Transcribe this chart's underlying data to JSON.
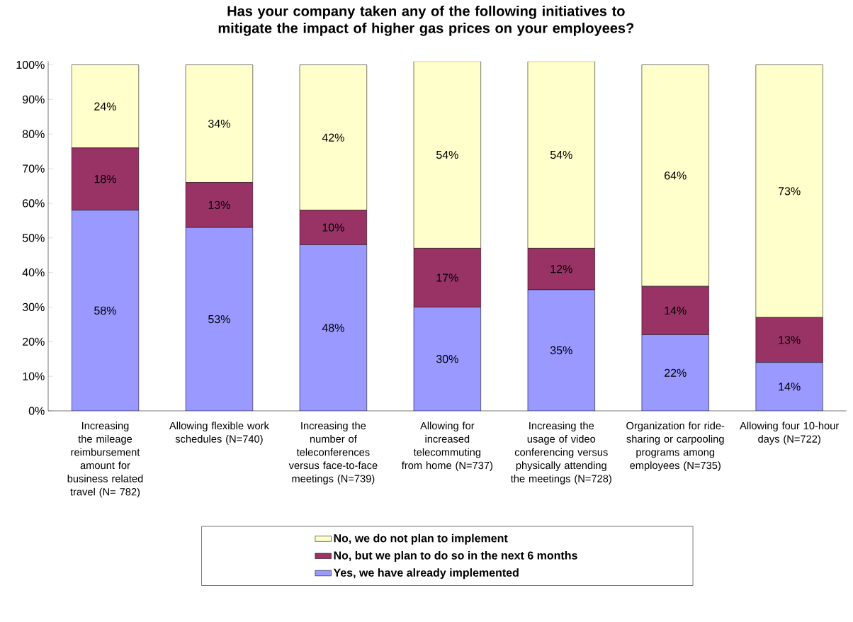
{
  "chart_data": {
    "type": "bar",
    "stacked": true,
    "title": "Has your company taken any of the following initiatives to mitigate the impact of higher gas prices on your employees?",
    "categories": [
      "Increasing the mileage reimbursement amount for business related travel (N= 782)",
      "Allowing flexible work schedules (N=740)",
      "Increasing the number of teleconferences versus face-to-face meetings (N=739)",
      "Allowing for increased telecommuting from home (N=737)",
      "Increasing the usage of video conferencing versus physically attending the meetings (N=728)",
      "Organization for ride-sharing or carpooling programs among employees (N=735)",
      "Allowing four 10-hour days (N=722)"
    ],
    "series": [
      {
        "name": "Yes, we have already implemented",
        "color": "#9999ff",
        "values": [
          58,
          53,
          48,
          30,
          35,
          22,
          14
        ],
        "value_labels": [
          "58%",
          "53%",
          "48%",
          "30%",
          "35%",
          "22%",
          "14%"
        ]
      },
      {
        "name": "No, but we plan to do so in the next 6 months",
        "color": "#993366",
        "values": [
          18,
          13,
          10,
          17,
          12,
          14,
          13
        ],
        "value_labels": [
          "18%",
          "13%",
          "10%",
          "17%",
          "12%",
          "14%",
          "13%"
        ]
      },
      {
        "name": "No, we do not plan to implement",
        "color": "#ffffcc",
        "values": [
          24,
          34,
          42,
          54,
          54,
          64,
          73
        ],
        "value_labels": [
          "24%",
          "34%",
          "42%",
          "54%",
          "54%",
          "64%",
          "73%"
        ]
      }
    ],
    "ylim": [
      0,
      101
    ],
    "yticks": [
      {
        "value": 0,
        "label": "0%"
      },
      {
        "value": 10,
        "label": "10%"
      },
      {
        "value": 20,
        "label": "20%"
      },
      {
        "value": 30,
        "label": "30%"
      },
      {
        "value": 40,
        "label": "40%"
      },
      {
        "value": 50,
        "label": "50%"
      },
      {
        "value": 60,
        "label": "60%"
      },
      {
        "value": 70,
        "label": "70%"
      },
      {
        "value": 80,
        "label": "80%"
      },
      {
        "value": 90,
        "label": "90%"
      },
      {
        "value": 100,
        "label": "100%"
      }
    ],
    "legend": "bottom",
    "grid": false
  }
}
